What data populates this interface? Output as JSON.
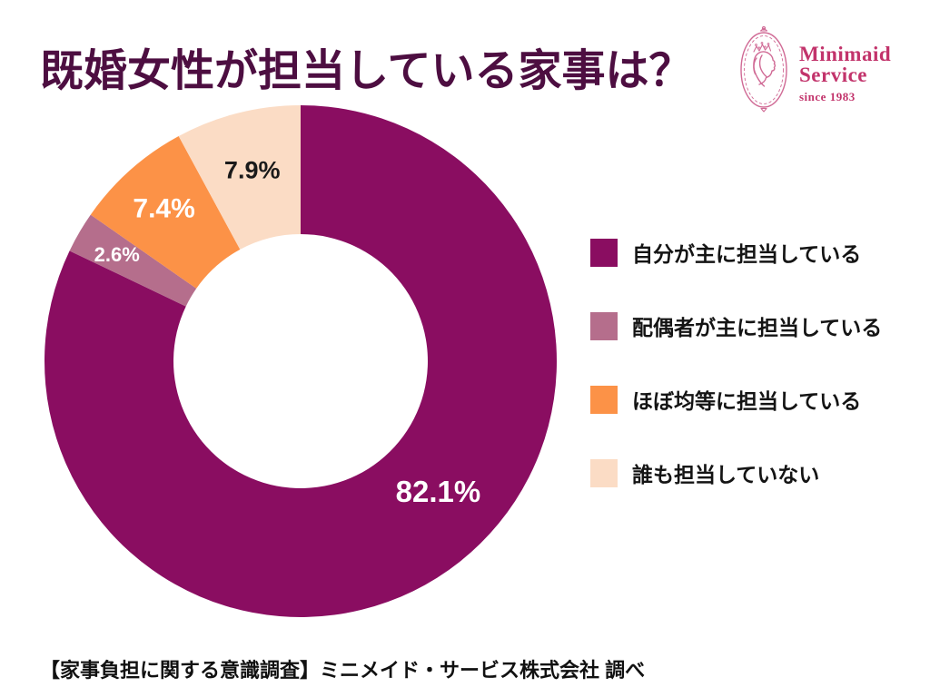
{
  "title": "既婚女性が担当している家事は？",
  "logo": {
    "name_line1": "Minimaid",
    "name_line2": "Service",
    "tagline": "since 1983",
    "color": "#c2336b"
  },
  "chart_data": {
    "type": "pie",
    "subtype": "donut",
    "title": "既婚女性が担当している家事は？",
    "start_angle_deg": 0,
    "direction": "clockwise",
    "categories": [
      "自分が主に担当している",
      "配偶者が主に担当している",
      "ほぼ均等に担当している",
      "誰も担当していない"
    ],
    "values": [
      82.1,
      2.6,
      7.4,
      7.9
    ],
    "unit": "%",
    "data_labels": [
      "82.1%",
      "2.6%",
      "7.4%",
      "7.9%"
    ],
    "colors": [
      "#8a0d61",
      "#b56e8c",
      "#fc9247",
      "#fbdcc5"
    ],
    "data_label_colors": [
      "#ffffff",
      "#ffffff",
      "#ffffff",
      "#1a1a1a"
    ],
    "legend_position": "right",
    "grid": false
  },
  "footer": "【家事負担に関する意識調査】ミニメイド・サービス株式会社 調べ",
  "theme": {
    "title_color": "#4d0e41",
    "background": "#ffffff",
    "legend_text_color": "#141414"
  }
}
